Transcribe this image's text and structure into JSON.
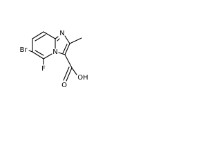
{
  "atoms": [
    {
      "label": "Br"
    },
    {
      "label": "F"
    },
    {
      "label": "N"
    },
    {
      "label": "N"
    },
    {
      "label": "O"
    },
    {
      "label": "OH"
    }
  ]
}
